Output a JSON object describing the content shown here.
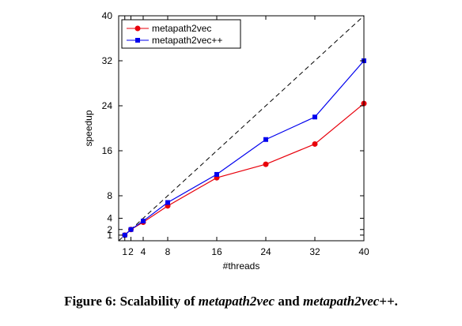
{
  "chart_data": {
    "type": "line",
    "xlabel": "#threads",
    "ylabel": "speedup",
    "xlim": [
      0,
      40
    ],
    "ylim": [
      0,
      40
    ],
    "x_ticks": [
      1,
      2,
      4,
      8,
      16,
      24,
      32,
      40
    ],
    "y_ticks": [
      1,
      2,
      4,
      8,
      16,
      24,
      32,
      40
    ],
    "legend_position": "top-left",
    "reference_line": {
      "style": "dashed",
      "points": [
        [
          0,
          0
        ],
        [
          40,
          40
        ]
      ]
    },
    "series": [
      {
        "name": "metapath2vec",
        "color": "#e8000b",
        "marker": "circle",
        "x": [
          1,
          2,
          4,
          8,
          16,
          24,
          32,
          40
        ],
        "y": [
          1,
          2,
          3.3,
          6.2,
          11.2,
          13.6,
          17.2,
          24.4
        ]
      },
      {
        "name": "metapath2vec++",
        "color": "#0000ee",
        "marker": "square",
        "x": [
          1,
          2,
          4,
          8,
          16,
          24,
          32,
          40
        ],
        "y": [
          1,
          2,
          3.5,
          6.8,
          11.8,
          18.0,
          22.0,
          32.0
        ]
      }
    ]
  },
  "caption": {
    "prefix": "Figure 6: Scalability of ",
    "term1": "metapath2vec",
    "middle": " and ",
    "term2": "metapath2vec++",
    "suffix": "."
  }
}
